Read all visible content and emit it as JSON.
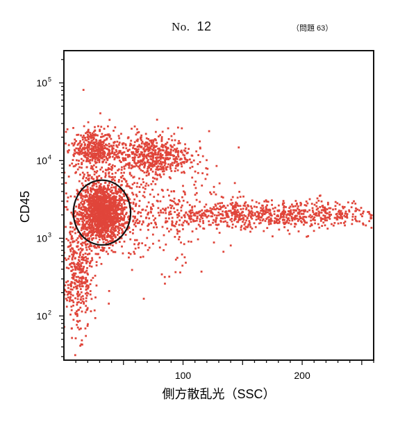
{
  "header": {
    "no_label": "No.",
    "no_value": "12",
    "question_label": "（問題 63）"
  },
  "chart_data": {
    "type": "scatter",
    "title": "",
    "xlabel": "側方散乱光（SSC）",
    "ylabel": "CD45",
    "xscale": "linear",
    "yscale": "log",
    "xlim": [
      0,
      260
    ],
    "ylim": [
      27,
      260000
    ],
    "x_ticks": [
      {
        "value": 100,
        "label": "100"
      },
      {
        "value": 200,
        "label": "200"
      }
    ],
    "y_ticks": [
      {
        "value": 100,
        "label": "10",
        "exp": "2"
      },
      {
        "value": 1000,
        "label": "10",
        "exp": "3"
      },
      {
        "value": 10000,
        "label": "10",
        "exp": "4"
      },
      {
        "value": 100000,
        "label": "10",
        "exp": "5"
      }
    ],
    "grid": false,
    "point_color": "#e0453a",
    "gate": {
      "shape": "ellipse",
      "x_center": 32,
      "x_radius": 24,
      "y_min": 820,
      "y_max": 5600,
      "color": "#111111"
    },
    "clusters": [
      {
        "x_center": 32,
        "x_spread": 10,
        "y_center": 2100,
        "y_spread_decades": 0.2,
        "count": 1500
      },
      {
        "x_center": 25,
        "x_spread": 9,
        "y_center": 14000,
        "y_spread_decades": 0.14,
        "count": 380
      },
      {
        "x_center": 72,
        "x_spread": 17,
        "y_center": 11500,
        "y_spread_decades": 0.13,
        "count": 520
      },
      {
        "x_center": 170,
        "x_spread": 55,
        "y_center": 2000,
        "y_spread_decades": 0.09,
        "count": 850
      },
      {
        "x_center": 12,
        "x_spread": 6,
        "y_center": 300,
        "y_spread_decades": 0.35,
        "count": 360
      },
      {
        "x_center": 60,
        "x_spread": 35,
        "y_center": 3500,
        "y_spread_decades": 0.45,
        "count": 420
      }
    ]
  }
}
